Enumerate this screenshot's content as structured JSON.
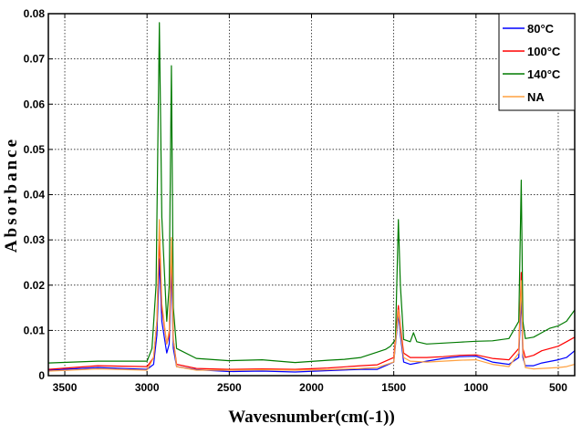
{
  "chart_data": {
    "type": "line",
    "title": "",
    "xlabel": "Wavesnumber(cm(-1))",
    "ylabel": "Absorbance",
    "xlim": [
      3600,
      400
    ],
    "ylim": [
      0,
      0.08
    ],
    "x_reversed": true,
    "grid": true,
    "legend_position": "top-right",
    "x_ticks": [
      3500,
      3000,
      2500,
      2000,
      1500,
      1000,
      500
    ],
    "x_tick_labels": [
      "3500",
      "3000",
      "2500",
      "2000",
      "1500",
      "1000",
      "500"
    ],
    "y_ticks": [
      0,
      0.01,
      0.02,
      0.03,
      0.04,
      0.05,
      0.06,
      0.07,
      0.08
    ],
    "y_tick_labels": [
      "0",
      "0.01",
      "0.02",
      "0.03",
      "0.04",
      "0.05",
      "0.06",
      "0.07",
      "0.08"
    ],
    "series": [
      {
        "name": "80°C",
        "color": "#0000ff",
        "points": [
          [
            3600,
            0.0012
          ],
          [
            3300,
            0.0018
          ],
          [
            3000,
            0.0014
          ],
          [
            2960,
            0.0025
          ],
          [
            2940,
            0.009
          ],
          [
            2925,
            0.0258
          ],
          [
            2910,
            0.012
          ],
          [
            2880,
            0.005
          ],
          [
            2865,
            0.007
          ],
          [
            2852,
            0.0243
          ],
          [
            2840,
            0.006
          ],
          [
            2820,
            0.002
          ],
          [
            2700,
            0.0013
          ],
          [
            2500,
            0.0009
          ],
          [
            2300,
            0.001
          ],
          [
            2100,
            0.0008
          ],
          [
            1900,
            0.0011
          ],
          [
            1700,
            0.0014
          ],
          [
            1600,
            0.0014
          ],
          [
            1500,
            0.003
          ],
          [
            1472,
            0.0135
          ],
          [
            1460,
            0.009
          ],
          [
            1440,
            0.003
          ],
          [
            1400,
            0.0025
          ],
          [
            1300,
            0.0032
          ],
          [
            1200,
            0.0038
          ],
          [
            1100,
            0.0042
          ],
          [
            1000,
            0.0043
          ],
          [
            900,
            0.003
          ],
          [
            800,
            0.0025
          ],
          [
            740,
            0.004
          ],
          [
            725,
            0.0175
          ],
          [
            715,
            0.004
          ],
          [
            700,
            0.0022
          ],
          [
            650,
            0.0022
          ],
          [
            600,
            0.0028
          ],
          [
            500,
            0.0035
          ],
          [
            450,
            0.004
          ],
          [
            400,
            0.0055
          ]
        ]
      },
      {
        "name": "100°C",
        "color": "#ff0000",
        "points": [
          [
            3600,
            0.0014
          ],
          [
            3300,
            0.0022
          ],
          [
            3000,
            0.002
          ],
          [
            2960,
            0.004
          ],
          [
            2940,
            0.012
          ],
          [
            2925,
            0.0305
          ],
          [
            2910,
            0.015
          ],
          [
            2880,
            0.007
          ],
          [
            2865,
            0.009
          ],
          [
            2852,
            0.0285
          ],
          [
            2840,
            0.008
          ],
          [
            2820,
            0.0025
          ],
          [
            2700,
            0.0016
          ],
          [
            2500,
            0.0014
          ],
          [
            2300,
            0.0015
          ],
          [
            2100,
            0.0014
          ],
          [
            1900,
            0.0017
          ],
          [
            1700,
            0.0022
          ],
          [
            1600,
            0.0024
          ],
          [
            1500,
            0.004
          ],
          [
            1472,
            0.0155
          ],
          [
            1460,
            0.011
          ],
          [
            1440,
            0.005
          ],
          [
            1400,
            0.004
          ],
          [
            1300,
            0.004
          ],
          [
            1200,
            0.0042
          ],
          [
            1100,
            0.0045
          ],
          [
            1000,
            0.0046
          ],
          [
            900,
            0.0038
          ],
          [
            800,
            0.0035
          ],
          [
            740,
            0.006
          ],
          [
            725,
            0.0228
          ],
          [
            715,
            0.006
          ],
          [
            700,
            0.004
          ],
          [
            650,
            0.0045
          ],
          [
            600,
            0.0055
          ],
          [
            500,
            0.0065
          ],
          [
            450,
            0.0075
          ],
          [
            400,
            0.0085
          ]
        ]
      },
      {
        "name": "140°C",
        "color": "#007a00",
        "points": [
          [
            3600,
            0.0028
          ],
          [
            3300,
            0.0032
          ],
          [
            3000,
            0.0032
          ],
          [
            2970,
            0.006
          ],
          [
            2945,
            0.02
          ],
          [
            2925,
            0.078
          ],
          [
            2910,
            0.035
          ],
          [
            2880,
            0.012
          ],
          [
            2865,
            0.02
          ],
          [
            2852,
            0.0685
          ],
          [
            2840,
            0.015
          ],
          [
            2820,
            0.006
          ],
          [
            2700,
            0.0038
          ],
          [
            2500,
            0.0033
          ],
          [
            2300,
            0.0035
          ],
          [
            2100,
            0.0029
          ],
          [
            1900,
            0.0034
          ],
          [
            1800,
            0.0036
          ],
          [
            1700,
            0.004
          ],
          [
            1600,
            0.0052
          ],
          [
            1550,
            0.0058
          ],
          [
            1520,
            0.0065
          ],
          [
            1490,
            0.008
          ],
          [
            1472,
            0.0345
          ],
          [
            1460,
            0.02
          ],
          [
            1440,
            0.008
          ],
          [
            1400,
            0.0075
          ],
          [
            1380,
            0.0095
          ],
          [
            1360,
            0.0075
          ],
          [
            1300,
            0.007
          ],
          [
            1200,
            0.0072
          ],
          [
            1100,
            0.0074
          ],
          [
            1000,
            0.0076
          ],
          [
            900,
            0.0077
          ],
          [
            800,
            0.0082
          ],
          [
            740,
            0.012
          ],
          [
            725,
            0.0432
          ],
          [
            715,
            0.012
          ],
          [
            700,
            0.0082
          ],
          [
            650,
            0.0085
          ],
          [
            600,
            0.0095
          ],
          [
            550,
            0.0105
          ],
          [
            500,
            0.011
          ],
          [
            450,
            0.012
          ],
          [
            400,
            0.0145
          ]
        ]
      },
      {
        "name": "NA",
        "color": "#ffa040",
        "points": [
          [
            3600,
            0.001
          ],
          [
            3300,
            0.0015
          ],
          [
            3000,
            0.0012
          ],
          [
            2960,
            0.004
          ],
          [
            2940,
            0.012
          ],
          [
            2925,
            0.0345
          ],
          [
            2910,
            0.016
          ],
          [
            2880,
            0.007
          ],
          [
            2865,
            0.01
          ],
          [
            2852,
            0.0305
          ],
          [
            2840,
            0.008
          ],
          [
            2820,
            0.002
          ],
          [
            2700,
            0.0012
          ],
          [
            2500,
            0.0012
          ],
          [
            2300,
            0.0013
          ],
          [
            2100,
            0.0012
          ],
          [
            1900,
            0.0013
          ],
          [
            1700,
            0.0016
          ],
          [
            1600,
            0.0018
          ],
          [
            1500,
            0.003
          ],
          [
            1472,
            0.0145
          ],
          [
            1460,
            0.01
          ],
          [
            1440,
            0.004
          ],
          [
            1400,
            0.0032
          ],
          [
            1300,
            0.003
          ],
          [
            1200,
            0.0032
          ],
          [
            1100,
            0.0034
          ],
          [
            1000,
            0.0035
          ],
          [
            900,
            0.0025
          ],
          [
            800,
            0.002
          ],
          [
            740,
            0.005
          ],
          [
            725,
            0.021
          ],
          [
            715,
            0.005
          ],
          [
            700,
            0.0018
          ],
          [
            650,
            0.0015
          ],
          [
            600,
            0.0016
          ],
          [
            500,
            0.0018
          ],
          [
            450,
            0.002
          ],
          [
            400,
            0.0025
          ]
        ]
      }
    ]
  }
}
